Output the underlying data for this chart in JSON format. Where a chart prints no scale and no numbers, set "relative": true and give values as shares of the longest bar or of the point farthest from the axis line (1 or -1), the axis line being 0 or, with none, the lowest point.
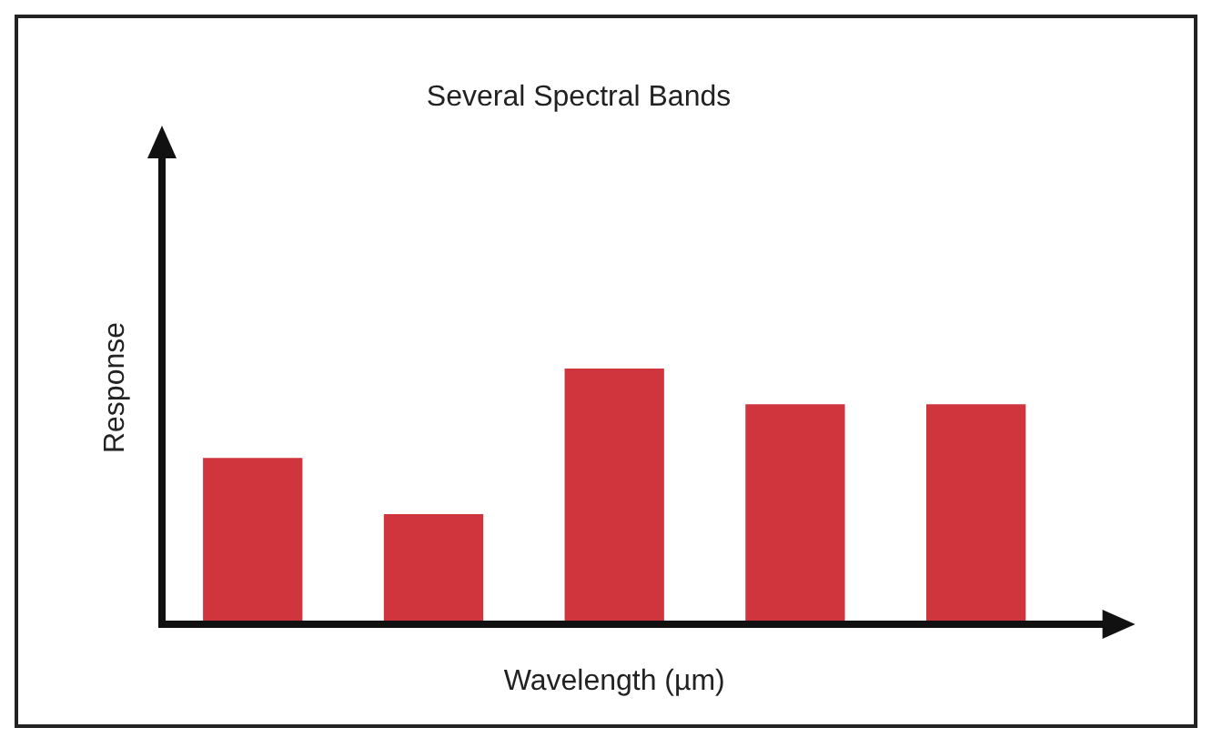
{
  "chart_data": {
    "type": "bar",
    "title": "Several Spectral Bands",
    "xlabel": "Wavelength (µm)",
    "ylabel": "Response",
    "relative": true,
    "categories": [
      null,
      null,
      null,
      null,
      null
    ],
    "values": [
      0.65,
      0.43,
      1,
      0.86,
      0.86
    ],
    "color": "#d0343c",
    "grid": false,
    "legend": false
  }
}
